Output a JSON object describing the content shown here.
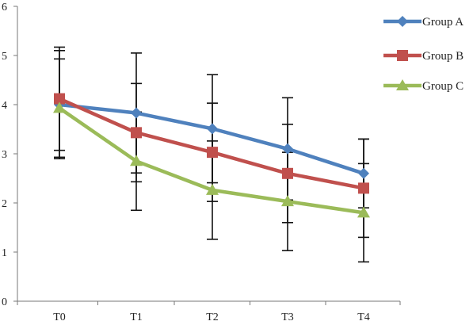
{
  "chart_data": {
    "type": "line",
    "title": "",
    "xlabel": "",
    "ylabel": "",
    "categories": [
      "T0",
      "T1",
      "T2",
      "T3",
      "T4"
    ],
    "y_ticks": [
      "0",
      "1",
      "2",
      "3",
      "4",
      "5",
      "6"
    ],
    "ylim": [
      0,
      6
    ],
    "grid": false,
    "legend_position": "top-right",
    "series": [
      {
        "name": "Group A",
        "color": "#4f81bd",
        "marker": "diamond",
        "values": [
          4.0,
          3.83,
          3.51,
          3.1,
          2.6
        ],
        "error": [
          1.1,
          1.22,
          1.1,
          1.04,
          0.7
        ]
      },
      {
        "name": "Group B",
        "color": "#c0504d",
        "marker": "square",
        "values": [
          4.12,
          3.43,
          3.03,
          2.6,
          2.3
        ],
        "error": [
          1.05,
          1.0,
          1.0,
          1.0,
          1.0
        ]
      },
      {
        "name": "Group C",
        "color": "#9bbb59",
        "marker": "triangle",
        "values": [
          3.93,
          2.85,
          2.26,
          2.03,
          1.8
        ],
        "error": [
          1.0,
          1.0,
          1.0,
          1.0,
          1.0
        ]
      }
    ]
  }
}
